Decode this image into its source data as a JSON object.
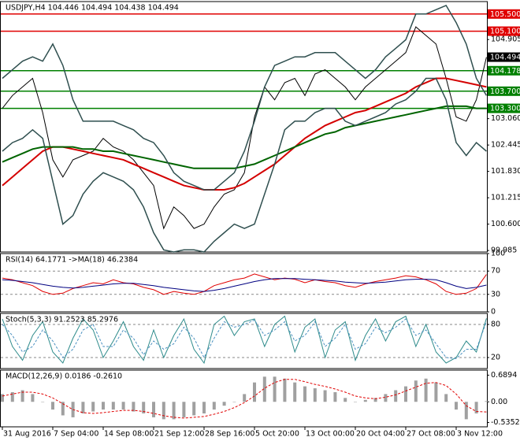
{
  "chart_data": [
    {
      "type": "line",
      "title": "USDJPY,H4  104.446 104.494 104.438 104.494",
      "categories": [
        "31 Aug 2016",
        null,
        null,
        null,
        null,
        "7 Sep 04:00",
        null,
        null,
        null,
        null,
        "14 Sep 08:00",
        null,
        null,
        null,
        null,
        "21 Sep 12:00",
        null,
        null,
        null,
        null,
        "28 Sep 16:00",
        null,
        null,
        null,
        null,
        "5 Oct 20:00",
        null,
        null,
        null,
        null,
        "13 Oct 00:00",
        null,
        null,
        null,
        null,
        "20 Oct 04:00",
        null,
        null,
        null,
        null,
        "27 Oct 08:00",
        null,
        null,
        null,
        null,
        "3 Nov 12:00",
        null,
        null,
        null
      ],
      "ylim": [
        99.95,
        105.79
      ],
      "yticks": [
        99.985,
        {
          "value": 100.6,
          "label": "100.600"
        },
        101.215,
        {
          "value": 101.83,
          "label": "101.830"
        },
        102.445,
        {
          "value": 103.06,
          "label": "103.060"
        },
        104.905
      ],
      "levels": [
        {
          "value": 105.5,
          "label": "105.500",
          "color": "#e00000"
        },
        {
          "value": 105.1,
          "label": "105.100",
          "color": "#e00000"
        },
        {
          "value": 104.178,
          "label": "104.178",
          "color": "#008000"
        },
        {
          "value": 103.7,
          "label": "103.700",
          "color": "#008000"
        },
        {
          "value": 103.3,
          "label": "103.300",
          "color": "#008000"
        }
      ],
      "last": 104.494,
      "series": [
        {
          "color": "#000000",
          "width": 1,
          "values": [
            103.3,
            103.6,
            103.8,
            104.0,
            103.2,
            102.1,
            101.7,
            102.1,
            102.2,
            102.3,
            102.6,
            102.4,
            102.3,
            102.1,
            101.8,
            101.5,
            100.5,
            101.0,
            100.8,
            100.5,
            100.6,
            101.0,
            101.3,
            101.4,
            101.8,
            103.1,
            103.8,
            103.5,
            103.9,
            104.0,
            103.6,
            104.1,
            104.2,
            104.0,
            103.8,
            103.5,
            103.8,
            104.0,
            104.2,
            104.4,
            104.6,
            105.2,
            105.0,
            104.8,
            104.0,
            103.1,
            103.0,
            103.5,
            104.494
          ]
        },
        {
          "color": "#d40000",
          "width": 2,
          "values": [
            101.5,
            101.7,
            101.9,
            102.1,
            102.3,
            102.4,
            102.4,
            102.35,
            102.3,
            102.25,
            102.2,
            102.15,
            102.1,
            102.0,
            101.9,
            101.8,
            101.7,
            101.6,
            101.5,
            101.45,
            101.4,
            101.4,
            101.4,
            101.45,
            101.55,
            101.7,
            101.85,
            102.0,
            102.2,
            102.4,
            102.6,
            102.75,
            102.9,
            103.0,
            103.1,
            103.2,
            103.25,
            103.35,
            103.45,
            103.55,
            103.65,
            103.8,
            103.9,
            104.0,
            104.0,
            103.95,
            103.9,
            103.85,
            103.8
          ]
        },
        {
          "color": "#006400",
          "width": 2,
          "values": [
            102.05,
            102.15,
            102.25,
            102.35,
            102.4,
            102.4,
            102.4,
            102.4,
            102.35,
            102.35,
            102.3,
            102.3,
            102.25,
            102.2,
            102.15,
            102.1,
            102.05,
            102.0,
            101.95,
            101.9,
            101.9,
            101.9,
            101.9,
            101.9,
            101.95,
            102.0,
            102.1,
            102.2,
            102.3,
            102.4,
            102.5,
            102.6,
            102.7,
            102.75,
            102.85,
            102.9,
            102.95,
            103.0,
            103.05,
            103.1,
            103.15,
            103.2,
            103.25,
            103.3,
            103.35,
            103.35,
            103.35,
            103.3,
            103.3
          ]
        },
        {
          "color": "#2f4f4f",
          "width": 1.5,
          "values": [
            104.0,
            104.2,
            104.4,
            104.5,
            104.4,
            104.8,
            104.3,
            103.5,
            103.0,
            103.0,
            103.0,
            103.0,
            102.9,
            102.8,
            102.6,
            102.5,
            102.2,
            101.8,
            101.6,
            101.5,
            101.4,
            101.4,
            101.6,
            101.8,
            102.3,
            103.0,
            103.8,
            104.3,
            104.4,
            104.5,
            104.5,
            104.6,
            104.6,
            104.6,
            104.4,
            104.2,
            104.0,
            104.2,
            104.5,
            104.7,
            104.9,
            105.5,
            105.5,
            105.6,
            105.7,
            105.3,
            104.8,
            104.0,
            103.6
          ]
        },
        {
          "color": "#2f4f4f",
          "width": 1.5,
          "values": [
            102.3,
            102.5,
            102.6,
            102.8,
            102.6,
            101.6,
            100.6,
            100.8,
            101.3,
            101.6,
            101.8,
            101.7,
            101.6,
            101.4,
            101.0,
            100.4,
            100.0,
            99.95,
            100.0,
            100.0,
            99.95,
            100.2,
            100.4,
            100.6,
            100.5,
            100.6,
            101.3,
            102.0,
            102.8,
            103.0,
            103.0,
            103.2,
            103.3,
            103.3,
            103.0,
            102.9,
            103.0,
            103.1,
            103.2,
            103.4,
            103.5,
            103.7,
            104.0,
            104.0,
            103.5,
            102.5,
            102.2,
            102.5,
            102.3
          ]
        }
      ]
    },
    {
      "type": "line",
      "title": "RSI(14) 64.1771 ->MA(18) 46.2384",
      "ylim": [
        0,
        100
      ],
      "yticks": [
        100,
        70,
        30,
        0
      ],
      "series": [
        {
          "color": "#e00000",
          "width": 1,
          "values": [
            58,
            55,
            50,
            45,
            35,
            30,
            32,
            40,
            45,
            50,
            48,
            55,
            50,
            48,
            42,
            38,
            30,
            35,
            32,
            30,
            35,
            45,
            50,
            55,
            58,
            65,
            60,
            55,
            58,
            56,
            50,
            55,
            52,
            50,
            45,
            42,
            48,
            52,
            55,
            58,
            62,
            60,
            55,
            48,
            35,
            30,
            32,
            40,
            64
          ]
        },
        {
          "color": "#000080",
          "width": 1,
          "values": [
            55,
            54,
            52,
            50,
            47,
            44,
            42,
            41,
            42,
            44,
            46,
            48,
            49,
            49,
            47,
            45,
            42,
            40,
            38,
            36,
            35,
            37,
            40,
            44,
            48,
            52,
            55,
            57,
            57,
            57,
            56,
            55,
            54,
            53,
            51,
            50,
            49,
            50,
            51,
            53,
            55,
            56,
            56,
            55,
            50,
            44,
            40,
            42,
            46
          ]
        }
      ]
    },
    {
      "type": "line",
      "title": "Stoch(5,3,3) 91.2523 85.2976",
      "ylim": [
        0,
        100
      ],
      "yticks": [
        80,
        20
      ],
      "series": [
        {
          "color": "#2e8b8b",
          "width": 1,
          "values": [
            90,
            40,
            15,
            60,
            85,
            30,
            10,
            55,
            90,
            70,
            20,
            50,
            85,
            40,
            15,
            70,
            20,
            60,
            90,
            35,
            10,
            80,
            95,
            60,
            85,
            90,
            40,
            80,
            95,
            30,
            75,
            90,
            20,
            70,
            85,
            15,
            60,
            90,
            50,
            85,
            95,
            40,
            80,
            30,
            10,
            20,
            50,
            30,
            91
          ]
        },
        {
          "color": "#4a90c0",
          "width": 1,
          "dash": true,
          "values": [
            80,
            60,
            30,
            40,
            70,
            50,
            20,
            35,
            70,
            80,
            40,
            40,
            70,
            55,
            25,
            50,
            35,
            45,
            75,
            55,
            20,
            55,
            85,
            75,
            80,
            88,
            60,
            70,
            85,
            50,
            60,
            85,
            40,
            55,
            80,
            35,
            45,
            75,
            65,
            75,
            90,
            60,
            70,
            45,
            20,
            18,
            35,
            35,
            85
          ]
        }
      ]
    },
    {
      "type": "combo",
      "title": "MACD(12,26,9) 0.0186 -0.2610",
      "ylim": [
        -0.646,
        0.819
      ],
      "yticks": [
        0.6894,
        {
          "value": 0,
          "label": "0.00"
        },
        -0.5352
      ],
      "series": [
        {
          "type": "bar",
          "color": "#a0a0a0",
          "values": [
            0.2,
            0.25,
            0.3,
            0.2,
            0.0,
            -0.2,
            -0.35,
            -0.4,
            -0.3,
            -0.25,
            -0.2,
            -0.2,
            -0.2,
            -0.25,
            -0.3,
            -0.4,
            -0.45,
            -0.45,
            -0.4,
            -0.35,
            -0.3,
            -0.2,
            -0.1,
            0.0,
            0.2,
            0.5,
            0.65,
            0.65,
            0.6,
            0.5,
            0.4,
            0.35,
            0.3,
            0.25,
            0.1,
            0.0,
            0.05,
            0.1,
            0.2,
            0.3,
            0.4,
            0.55,
            0.6,
            0.5,
            0.2,
            -0.2,
            -0.45,
            -0.3,
            0.0186
          ]
        },
        {
          "type": "line",
          "color": "#e00000",
          "width": 1,
          "dash": true,
          "values": [
            0.15,
            0.2,
            0.25,
            0.25,
            0.2,
            0.1,
            -0.05,
            -0.2,
            -0.28,
            -0.3,
            -0.28,
            -0.25,
            -0.22,
            -0.22,
            -0.25,
            -0.3,
            -0.36,
            -0.4,
            -0.42,
            -0.4,
            -0.38,
            -0.32,
            -0.25,
            -0.15,
            -0.02,
            0.15,
            0.35,
            0.5,
            0.58,
            0.58,
            0.52,
            0.45,
            0.4,
            0.33,
            0.25,
            0.15,
            0.1,
            0.08,
            0.12,
            0.18,
            0.28,
            0.38,
            0.48,
            0.5,
            0.42,
            0.2,
            -0.1,
            -0.25,
            -0.261
          ]
        }
      ]
    }
  ]
}
